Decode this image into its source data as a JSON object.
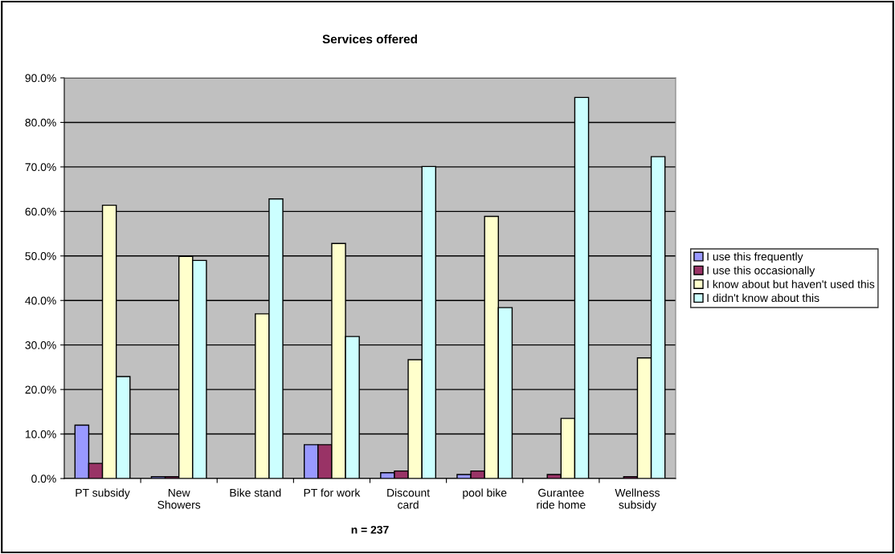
{
  "chart_data": {
    "type": "bar",
    "title": "Services offered",
    "categories": [
      "PT subsidy",
      "New\nShowers",
      "Bike stand",
      "PT for work",
      "Discount\ncard",
      "pool bike",
      "Gurantee\nride home",
      "Wellness\nsubsidy"
    ],
    "series": [
      {
        "name": "I use this frequently",
        "color": "#9999ff",
        "values": [
          12.0,
          0.4,
          0,
          7.6,
          1.3,
          0.9,
          0,
          0
        ]
      },
      {
        "name": "I use this occasionally",
        "color": "#993366",
        "values": [
          3.4,
          0.4,
          0,
          7.6,
          1.7,
          1.7,
          0.9,
          0.4
        ]
      },
      {
        "name": "I know about but haven't used this",
        "color": "#ffffcc",
        "values": [
          61.4,
          49.9,
          37.0,
          52.8,
          26.7,
          58.9,
          13.5,
          27.1
        ]
      },
      {
        "name": "I didn't know about this",
        "color": "#ccffff",
        "values": [
          22.9,
          49.0,
          62.8,
          31.9,
          70.1,
          38.4,
          85.6,
          72.3
        ]
      }
    ],
    "ylim": [
      0,
      90
    ],
    "yticks": [
      {
        "value": 0,
        "label": "0.0%"
      },
      {
        "value": 10,
        "label": "10.0%"
      },
      {
        "value": 20,
        "label": "20.0%"
      },
      {
        "value": 30,
        "label": "30.0%"
      },
      {
        "value": 40,
        "label": "40.0%"
      },
      {
        "value": 50,
        "label": "50.0%"
      },
      {
        "value": 60,
        "label": "60.0%"
      },
      {
        "value": 70,
        "label": "70.0%"
      },
      {
        "value": 80,
        "label": "80.0%"
      },
      {
        "value": 90,
        "label": "90.0%"
      }
    ],
    "grid": "y",
    "legend": "right",
    "annotations": [
      "n = 237"
    ]
  }
}
